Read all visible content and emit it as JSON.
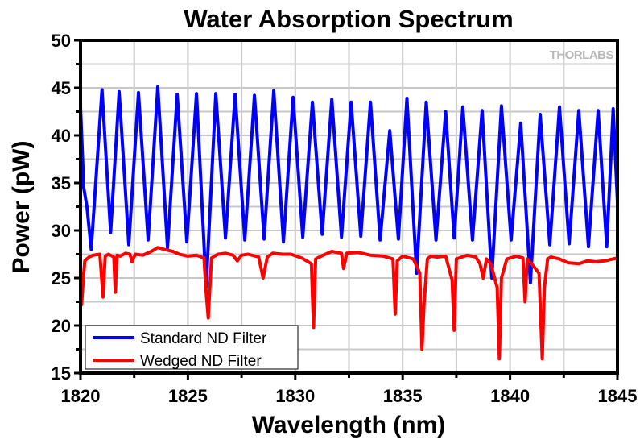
{
  "chart_data": {
    "type": "line",
    "title": "Water Absorption Spectrum",
    "xlabel": "Wavelength (nm)",
    "ylabel": "Power (pW)",
    "xlim": [
      1820,
      1845
    ],
    "ylim": [
      15,
      50
    ],
    "xticks": [
      1820,
      1825,
      1830,
      1835,
      1840,
      1845
    ],
    "xtick_labels": [
      "1820",
      "1825",
      "1830",
      "1835",
      "1840",
      "1845"
    ],
    "yticks": [
      15,
      20,
      25,
      30,
      35,
      40,
      45,
      50
    ],
    "ytick_labels": [
      "15",
      "20",
      "25",
      "30",
      "35",
      "40",
      "45",
      "50"
    ],
    "x_minor_step": 2.5,
    "y_minor_step": 2.5,
    "grid": true,
    "legend_position": "bottom-left",
    "watermark": "THORLABS",
    "series": [
      {
        "name": "Standard ND Filter",
        "color": "#0000ff",
        "x": [
          1820.0,
          1820.15,
          1820.3,
          1820.5,
          1821.0,
          1821.4,
          1821.8,
          1822.25,
          1822.7,
          1823.15,
          1823.6,
          1824.05,
          1824.5,
          1824.95,
          1825.4,
          1825.85,
          1826.3,
          1826.75,
          1827.2,
          1827.65,
          1828.1,
          1828.55,
          1829.0,
          1829.45,
          1829.9,
          1830.35,
          1830.8,
          1831.25,
          1831.7,
          1832.15,
          1832.6,
          1833.05,
          1833.5,
          1833.95,
          1834.4,
          1834.8,
          1835.2,
          1835.65,
          1836.1,
          1836.55,
          1837.0,
          1837.4,
          1837.8,
          1838.25,
          1838.7,
          1839.15,
          1839.6,
          1840.05,
          1840.5,
          1840.95,
          1841.4,
          1841.85,
          1842.3,
          1842.75,
          1843.2,
          1843.65,
          1844.1,
          1844.5,
          1844.8,
          1845.0
        ],
        "y": [
          43.0,
          34.5,
          32.5,
          28.0,
          44.8,
          29.8,
          44.6,
          28.5,
          44.5,
          29.0,
          45.1,
          28.2,
          44.3,
          28.8,
          44.4,
          24.0,
          44.4,
          29.2,
          44.3,
          29.0,
          44.2,
          29.1,
          44.7,
          28.8,
          44.0,
          29.3,
          43.5,
          29.6,
          43.8,
          29.3,
          43.5,
          29.4,
          43.5,
          29.0,
          40.5,
          29.1,
          43.9,
          25.5,
          43.5,
          29.0,
          42.5,
          29.2,
          43.0,
          29.0,
          42.6,
          25.0,
          43.1,
          29.0,
          41.3,
          24.5,
          42.2,
          28.5,
          43.0,
          28.6,
          42.6,
          28.3,
          42.6,
          28.3,
          42.8,
          33.0
        ]
      },
      {
        "name": "Wedged ND Filter",
        "color": "#ff0000",
        "x": [
          1820.0,
          1820.05,
          1820.12,
          1820.2,
          1820.4,
          1820.6,
          1820.9,
          1821.05,
          1821.15,
          1821.3,
          1821.55,
          1821.62,
          1821.7,
          1821.85,
          1822.1,
          1822.3,
          1822.4,
          1822.55,
          1822.9,
          1823.3,
          1823.6,
          1823.9,
          1824.3,
          1824.6,
          1825.0,
          1825.4,
          1825.75,
          1825.85,
          1825.95,
          1826.1,
          1826.4,
          1826.75,
          1827.1,
          1827.3,
          1827.5,
          1827.8,
          1828.3,
          1828.5,
          1828.7,
          1828.95,
          1829.4,
          1829.8,
          1830.3,
          1830.75,
          1830.85,
          1830.95,
          1831.3,
          1831.7,
          1832.15,
          1832.25,
          1832.4,
          1832.9,
          1833.5,
          1834.1,
          1834.55,
          1834.65,
          1834.75,
          1835.0,
          1835.5,
          1835.8,
          1835.9,
          1836.0,
          1836.15,
          1836.3,
          1836.6,
          1837.0,
          1837.3,
          1837.4,
          1837.5,
          1838.0,
          1838.4,
          1838.6,
          1838.75,
          1838.9,
          1839.1,
          1839.4,
          1839.5,
          1839.6,
          1839.85,
          1840.3,
          1840.6,
          1840.7,
          1840.8,
          1841.0,
          1841.35,
          1841.5,
          1841.6,
          1841.75,
          1841.9,
          1842.3,
          1842.7,
          1843.2,
          1843.6,
          1844.0,
          1844.4,
          1845.0
        ],
        "y": [
          26.0,
          22.2,
          24.5,
          26.8,
          27.2,
          27.4,
          27.5,
          23.0,
          27.3,
          27.5,
          27.2,
          23.5,
          27.4,
          27.3,
          27.6,
          27.5,
          26.7,
          27.5,
          27.4,
          27.8,
          28.2,
          28.0,
          27.8,
          27.5,
          27.3,
          27.4,
          27.1,
          23.5,
          20.8,
          27.1,
          27.5,
          27.6,
          27.4,
          26.8,
          27.4,
          27.5,
          27.2,
          25.0,
          27.2,
          27.6,
          27.5,
          27.5,
          27.1,
          26.5,
          19.8,
          27.0,
          27.4,
          27.8,
          27.6,
          26.0,
          27.6,
          27.7,
          27.4,
          27.3,
          27.0,
          21.2,
          26.8,
          27.3,
          27.0,
          25.5,
          17.5,
          22.5,
          27.0,
          27.3,
          27.2,
          27.3,
          24.8,
          19.5,
          27.0,
          27.4,
          27.2,
          26.5,
          25.0,
          27.0,
          26.5,
          24.0,
          16.5,
          25.0,
          27.0,
          27.3,
          27.1,
          22.5,
          27.0,
          26.5,
          25.5,
          16.5,
          24.0,
          27.0,
          27.2,
          27.0,
          26.6,
          26.5,
          26.8,
          26.7,
          26.8,
          27.1
        ]
      }
    ]
  }
}
